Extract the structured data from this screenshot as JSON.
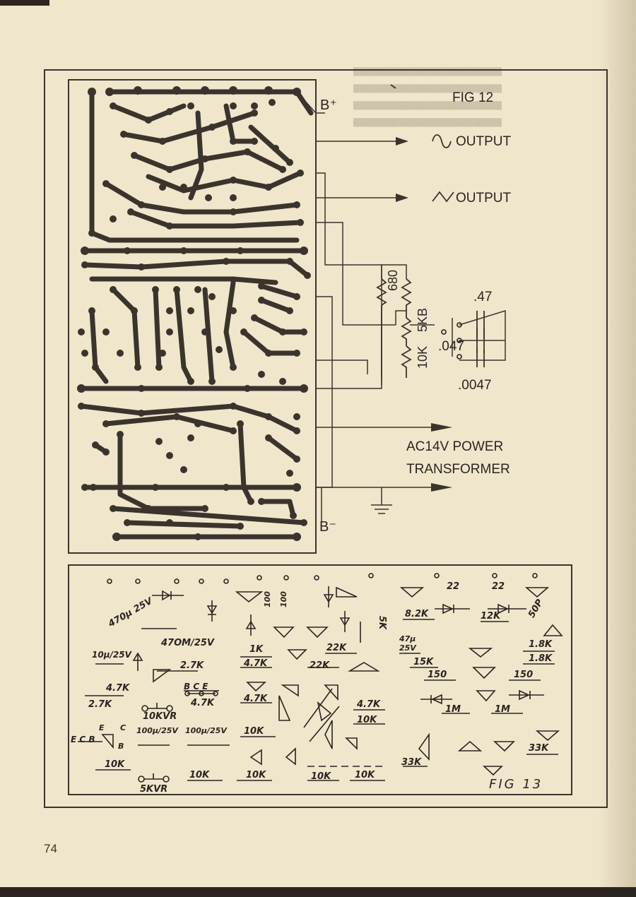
{
  "page_number": "74",
  "fig12": {
    "title": "FIG 12",
    "b_plus": "B⁺",
    "b_minus": "B⁻",
    "output_sine": "OUTPUT",
    "output_triangle": "OUTPUT",
    "power_line1": "AC14V POWER",
    "power_line2": "TRANSFORMER",
    "r_680": "680",
    "r_5kb": "5KB",
    "r_10k": "10K",
    "c_47": ".47",
    "c_047": ".047",
    "c_0047": ".0047"
  },
  "fig13": {
    "title": "FIG 13",
    "labels": [
      "470µ 25V",
      "47ΟΜ/25V",
      "10µ/25V",
      "2.7K",
      "4.7K",
      "2.7K",
      "B C E",
      "4.7K",
      "10KVR",
      "E C B",
      "E",
      "C",
      "B",
      "100µ/25V",
      "100µ/25V",
      "10K",
      "10K",
      "5KVR",
      "10K",
      "10K",
      "1K",
      "4.7K",
      "4.7K",
      "22K",
      "22K",
      "100",
      "100",
      "5K",
      "4.7K",
      "10K",
      "10K",
      "10K",
      "8.2K",
      "22",
      "22",
      "12K",
      "50P",
      "1.8K",
      "1.8K",
      "47µ 25V",
      "15K",
      "150",
      "150",
      "1M",
      "1M",
      "33K",
      "33K"
    ]
  }
}
